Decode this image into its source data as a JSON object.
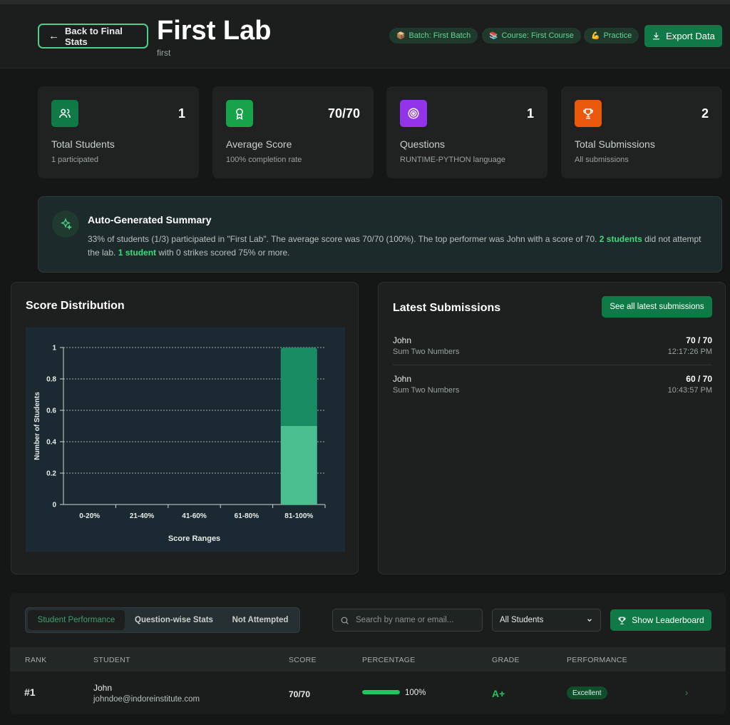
{
  "header": {
    "back_label": "Back to Final Stats",
    "title": "First Lab",
    "subtitle": "first",
    "chips": [
      {
        "icon": "📦",
        "label": "Batch: First Batch"
      },
      {
        "icon": "📚",
        "label": "Course: First Course"
      },
      {
        "icon": "💪",
        "label": "Practice"
      }
    ],
    "export_label": "Export Data"
  },
  "stats": [
    {
      "icon": "users-icon",
      "color": "#0f7a45",
      "value": "1",
      "label": "Total Students",
      "sub": "1 participated"
    },
    {
      "icon": "award-icon",
      "color": "#16a34a",
      "value": "70/70",
      "label": "Average Score",
      "sub": "100% completion rate"
    },
    {
      "icon": "target-icon",
      "color": "#9333ea",
      "value": "1",
      "label": "Questions",
      "sub": "RUNTIME-PYTHON language"
    },
    {
      "icon": "trophy-icon",
      "color": "#ea580c",
      "value": "2",
      "label": "Total Submissions",
      "sub": "All submissions"
    }
  ],
  "summary": {
    "title": "Auto-Generated Summary",
    "text_1": "33% of students (1/3) participated in \"First Lab\". The average score was 70/70 (100%). The top performer was John with a score of 70. ",
    "hl_1": "2 students",
    "text_2": " did not attempt the lab. ",
    "hl_2": "1 student",
    "text_3": " with 0 strikes scored 75% or more."
  },
  "distribution": {
    "title": "Score Distribution",
    "chart_data": {
      "type": "bar",
      "categories": [
        "0-20%",
        "21-40%",
        "41-60%",
        "61-80%",
        "81-100%"
      ],
      "series": [
        {
          "values": [
            0,
            0,
            0,
            0,
            0.5
          ],
          "color": "#4cbf91"
        },
        {
          "values": [
            0,
            0,
            0,
            0,
            0.5
          ],
          "color": "#198c64"
        }
      ],
      "stacked": true,
      "xlabel": "Score Ranges",
      "ylabel": "Number of Students",
      "ylim": [
        0,
        1
      ],
      "yticks": [
        "0",
        "0.2",
        "0.4",
        "0.6",
        "0.8",
        "1"
      ],
      "grid": true
    }
  },
  "latest": {
    "title": "Latest Submissions",
    "see_all_label": "See all latest submissions",
    "items": [
      {
        "name": "John",
        "question": "Sum Two Numbers",
        "score": "70 / 70",
        "time": "12:17:26 PM"
      },
      {
        "name": "John",
        "question": "Sum Two Numbers",
        "score": "60 / 70",
        "time": "10:43:57 PM"
      }
    ]
  },
  "table": {
    "tabs": [
      "Student Performance",
      "Question-wise Stats",
      "Not Attempted"
    ],
    "search_placeholder": "Search by name or email...",
    "filter_value": "All Students",
    "leaderboard_label": "Show Leaderboard",
    "columns": [
      "RANK",
      "STUDENT",
      "SCORE",
      "PERCENTAGE",
      "GRADE",
      "PERFORMANCE"
    ],
    "rows": [
      {
        "rank": "#1",
        "name": "John",
        "email": "johndoe@indoreinstitute.com",
        "score": "70/70",
        "percentage": "100%",
        "percent_value": 100,
        "grade": "A+",
        "performance": "Excellent"
      }
    ]
  }
}
